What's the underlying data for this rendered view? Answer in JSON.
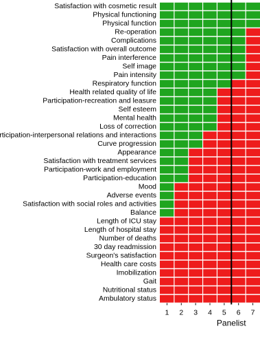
{
  "chart_data": {
    "type": "bar",
    "orientation": "horizontal",
    "stacked": true,
    "categories": [
      "Satisfaction with cosmetic result",
      "Physical functioning",
      "Physical function",
      "Re-operation",
      "Complications",
      "Satisfaction with overall outcome",
      "Pain interference",
      "Self image",
      "Pain intensity",
      "Respiratory function",
      "Health related quality of life",
      "Participation-recreation and leasure",
      "Self esteem",
      "Mental health",
      "Loss of correction",
      "Participation-interpersonal relations and interactions",
      "Curve progression",
      "Appearance",
      "Satisfaction with treatment services",
      "Participation-work and employment",
      "Participation-education",
      "Mood",
      "Adverse events",
      "Satisfaction with social roles and activities",
      "Balance",
      "Length of ICU stay",
      "Length of hospital stay",
      "Number of deaths",
      "30 day readmission",
      "Surgeon's satisfaction",
      "Health care costs",
      "Imobilization",
      "Gait",
      "Nutritional status",
      "Ambulatory status"
    ],
    "series": [
      {
        "color": "#1fa51f",
        "values": [
          7,
          7,
          7,
          6,
          6,
          6,
          6,
          6,
          6,
          5,
          4,
          4,
          4,
          4,
          4,
          3,
          3,
          2,
          2,
          2,
          2,
          1,
          1,
          1,
          1,
          0,
          0,
          0,
          0,
          0,
          0,
          0,
          0,
          0,
          0
        ]
      },
      {
        "color": "#ee1c1c",
        "values": [
          0,
          0,
          0,
          1,
          1,
          1,
          1,
          1,
          1,
          2,
          3,
          3,
          3,
          3,
          3,
          4,
          4,
          5,
          5,
          5,
          5,
          6,
          6,
          6,
          6,
          7,
          7,
          7,
          7,
          7,
          7,
          7,
          7,
          7,
          7
        ]
      }
    ],
    "xlabel": "Panelist",
    "xlim": [
      0.5,
      7.5
    ],
    "xticks": [
      1,
      2,
      3,
      4,
      5,
      6,
      7
    ],
    "vline": 5.5
  }
}
